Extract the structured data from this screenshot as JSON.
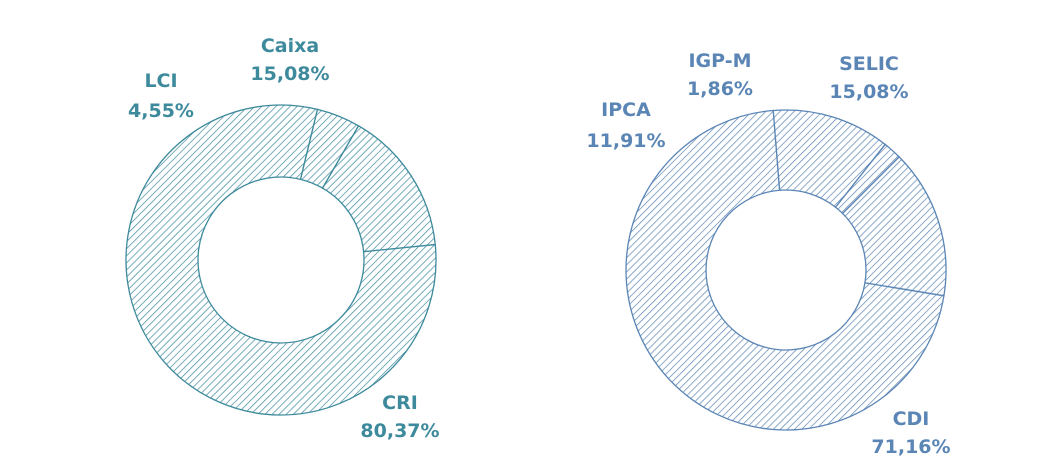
{
  "chart_data": [
    {
      "type": "pie",
      "style": "donut",
      "fill": "diagonal-hatch",
      "color": "#3d8a9c",
      "categories": [
        "Caixa",
        "CRI",
        "LCI"
      ],
      "values": [
        15.08,
        80.37,
        4.55
      ],
      "value_labels": [
        "15,08%",
        "80,37%",
        "4,55%"
      ]
    },
    {
      "type": "pie",
      "style": "donut",
      "fill": "diagonal-hatch",
      "color": "#5a85b5",
      "categories": [
        "SELIC",
        "CDI",
        "IPCA",
        "IGP-M"
      ],
      "values": [
        15.08,
        71.16,
        11.91,
        1.86
      ],
      "value_labels": [
        "15,08%",
        "71,16%",
        "11,91%",
        "1,86%"
      ]
    }
  ]
}
